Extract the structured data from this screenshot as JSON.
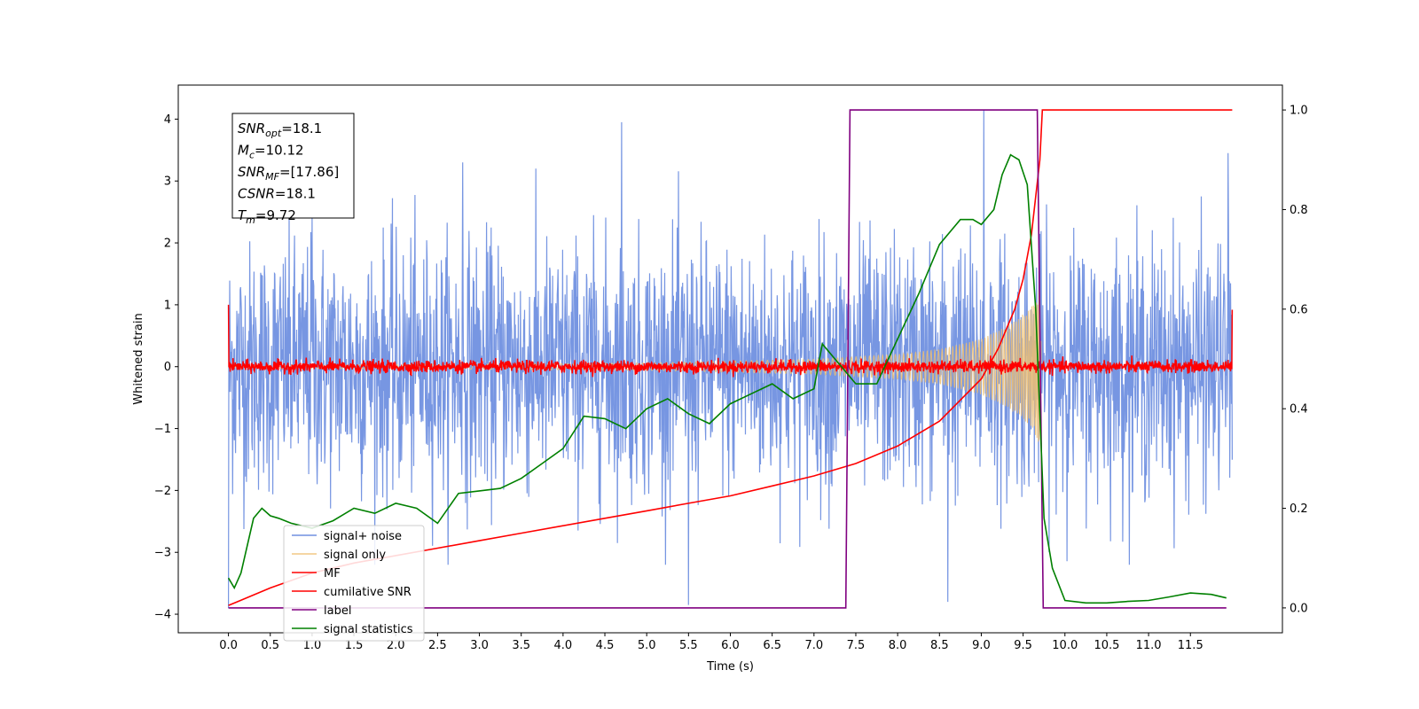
{
  "chart_data": {
    "type": "line",
    "title": "",
    "xlabel": "Time (s)",
    "ylabel": "Whitened strain",
    "xlim": [
      -0.6,
      12.6
    ],
    "ylim": [
      -4.3,
      4.55
    ],
    "y2lim": [
      -0.05,
      1.05
    ],
    "x_ticks": [
      0.0,
      0.5,
      1.0,
      1.5,
      2.0,
      2.5,
      3.0,
      3.5,
      4.0,
      4.5,
      5.0,
      5.5,
      6.0,
      6.5,
      7.0,
      7.5,
      8.0,
      8.5,
      9.0,
      9.5,
      10.0,
      10.5,
      11.0,
      11.5
    ],
    "x_tick_labels": [
      "0.0",
      "0.5",
      "1.0",
      "1.5",
      "2.0",
      "2.5",
      "3.0",
      "3.5",
      "4.0",
      "4.5",
      "5.0",
      "5.5",
      "6.0",
      "6.5",
      "7.0",
      "7.5",
      "8.0",
      "8.5",
      "9.0",
      "9.5",
      "10.0",
      "10.5",
      "11.0",
      "11.5"
    ],
    "y_ticks": [
      -4,
      -3,
      -2,
      -1,
      0,
      1,
      2,
      3,
      4
    ],
    "y_tick_labels": [
      "−4",
      "−3",
      "−2",
      "−1",
      "0",
      "1",
      "2",
      "3",
      "4"
    ],
    "y2_ticks": [
      0.0,
      0.2,
      0.4,
      0.6,
      0.8,
      1.0
    ],
    "y2_tick_labels": [
      "0.0",
      "0.2",
      "0.4",
      "0.6",
      "0.8",
      "1.0"
    ],
    "legend_position": "lower-left",
    "grid": false,
    "annotation": {
      "lines": [
        {
          "label": "SNR",
          "sub": "opt",
          "value": "=18.1"
        },
        {
          "label": "M",
          "sub": "c",
          "value": "=10.12"
        },
        {
          "label": "SNR",
          "sub": "MF",
          "value": "=[17.86]"
        },
        {
          "label": "CSNR",
          "sub": "",
          "value": "=18.1"
        },
        {
          "label": "T",
          "sub": "m",
          "value": "=9.72"
        }
      ]
    },
    "series": [
      {
        "name": "signal+ noise",
        "axis": "left",
        "color": "#7090e0",
        "description_kind": "noise",
        "x_range": [
          0.0,
          12.0
        ],
        "sigma": 1.0,
        "peaks": [
          [
            1.0,
            2.4
          ],
          [
            2.8,
            3.3
          ],
          [
            4.7,
            3.95
          ],
          [
            5.5,
            -3.85
          ],
          [
            8.6,
            -3.8
          ],
          [
            9.03,
            4.15
          ],
          [
            11.95,
            3.45
          ],
          [
            0.0,
            -3.9
          ]
        ]
      },
      {
        "name": "signal only",
        "axis": "left",
        "color": "#f0c070",
        "description_kind": "chirp",
        "x_range": [
          0.0,
          9.72
        ],
        "envelope": [
          [
            0.0,
            0.02
          ],
          [
            5.0,
            0.06
          ],
          [
            7.0,
            0.12
          ],
          [
            8.0,
            0.2
          ],
          [
            8.5,
            0.28
          ],
          [
            9.0,
            0.45
          ],
          [
            9.3,
            0.65
          ],
          [
            9.5,
            0.85
          ],
          [
            9.62,
            1.0
          ],
          [
            9.7,
            1.3
          ],
          [
            9.72,
            0.0
          ]
        ]
      },
      {
        "name": "MF",
        "axis": "left",
        "color": "#ff0000",
        "description_kind": "mf",
        "x_range": [
          0.0,
          12.0
        ],
        "edge_values": [
          [
            0.0,
            1.0
          ],
          [
            12.0,
            0.92
          ]
        ],
        "sigma": 0.05
      },
      {
        "name": "cumilative SNR",
        "axis": "right",
        "color": "#ff0000",
        "x": [
          0.0,
          0.1,
          0.5,
          1.0,
          1.5,
          2.0,
          2.5,
          3.0,
          3.5,
          4.0,
          4.5,
          5.0,
          5.5,
          6.0,
          6.5,
          7.0,
          7.5,
          8.0,
          8.5,
          9.0,
          9.2,
          9.4,
          9.5,
          9.6,
          9.7,
          9.73,
          10.0,
          12.0
        ],
        "y": [
          0.005,
          0.012,
          0.04,
          0.07,
          0.09,
          0.105,
          0.12,
          0.135,
          0.15,
          0.165,
          0.18,
          0.195,
          0.21,
          0.225,
          0.245,
          0.265,
          0.29,
          0.325,
          0.375,
          0.46,
          0.52,
          0.6,
          0.66,
          0.75,
          0.9,
          1.0,
          1.0,
          1.0
        ]
      },
      {
        "name": "label",
        "axis": "right",
        "color": "#800080",
        "x": [
          0.0,
          7.38,
          7.43,
          9.67,
          9.74,
          11.93
        ],
        "y": [
          0.0,
          0.0,
          1.0,
          1.0,
          0.0,
          0.0
        ]
      },
      {
        "name": "signal statistics",
        "axis": "right",
        "color": "#008000",
        "x": [
          0.0,
          0.07,
          0.15,
          0.3,
          0.4,
          0.5,
          0.6,
          0.75,
          1.0,
          1.25,
          1.5,
          1.75,
          2.0,
          2.25,
          2.5,
          2.75,
          3.0,
          3.25,
          3.5,
          3.75,
          4.0,
          4.25,
          4.5,
          4.75,
          5.0,
          5.25,
          5.5,
          5.75,
          6.0,
          6.25,
          6.5,
          6.75,
          7.0,
          7.1,
          7.25,
          7.5,
          7.75,
          8.0,
          8.25,
          8.5,
          8.75,
          8.9,
          9.0,
          9.15,
          9.25,
          9.35,
          9.45,
          9.55,
          9.65,
          9.75,
          9.85,
          10.0,
          10.25,
          10.5,
          10.75,
          11.0,
          11.25,
          11.5,
          11.75,
          11.93
        ],
        "y": [
          0.06,
          0.04,
          0.07,
          0.18,
          0.2,
          0.185,
          0.18,
          0.17,
          0.16,
          0.175,
          0.2,
          0.19,
          0.21,
          0.2,
          0.17,
          0.23,
          0.235,
          0.24,
          0.26,
          0.29,
          0.32,
          0.385,
          0.38,
          0.36,
          0.4,
          0.42,
          0.39,
          0.37,
          0.41,
          0.43,
          0.45,
          0.42,
          0.44,
          0.53,
          0.5,
          0.45,
          0.45,
          0.54,
          0.63,
          0.73,
          0.78,
          0.78,
          0.77,
          0.8,
          0.87,
          0.91,
          0.9,
          0.85,
          0.6,
          0.18,
          0.08,
          0.015,
          0.01,
          0.01,
          0.013,
          0.015,
          0.022,
          0.03,
          0.027,
          0.02
        ]
      }
    ]
  }
}
